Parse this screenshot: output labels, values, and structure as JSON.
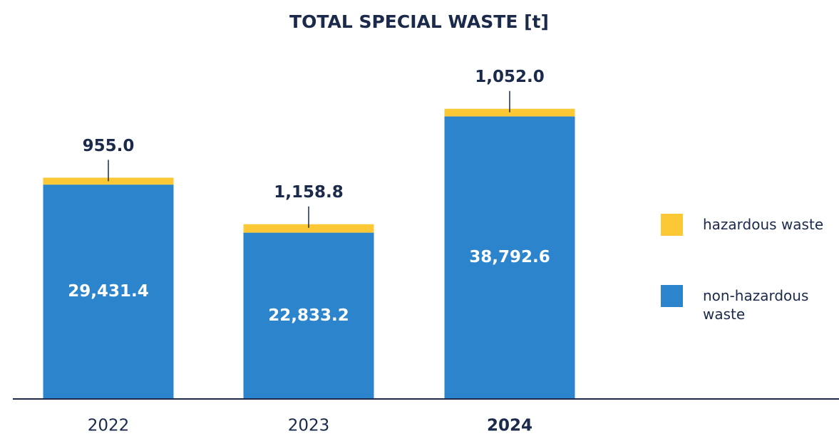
{
  "chart_data": {
    "type": "stacked_bar",
    "title": "TOTAL SPECIAL WASTE [t]",
    "categories": [
      "2022",
      "2023",
      "2024"
    ],
    "highlight_category": "2024",
    "series": [
      {
        "name": "non-hazardous waste",
        "color": "#2b84cc",
        "values": [
          29431.4,
          22833.2,
          38792.6
        ],
        "value_labels": [
          "29,431.4",
          "22,833.2",
          "38,792.6"
        ]
      },
      {
        "name": "hazardous waste",
        "color": "#fdc836",
        "values": [
          955.0,
          1158.8,
          1052.0
        ],
        "value_labels": [
          "955.0",
          "1,158.8",
          "1,052.0"
        ]
      }
    ],
    "ylim": [
      0,
      45000
    ],
    "legend": "right"
  }
}
